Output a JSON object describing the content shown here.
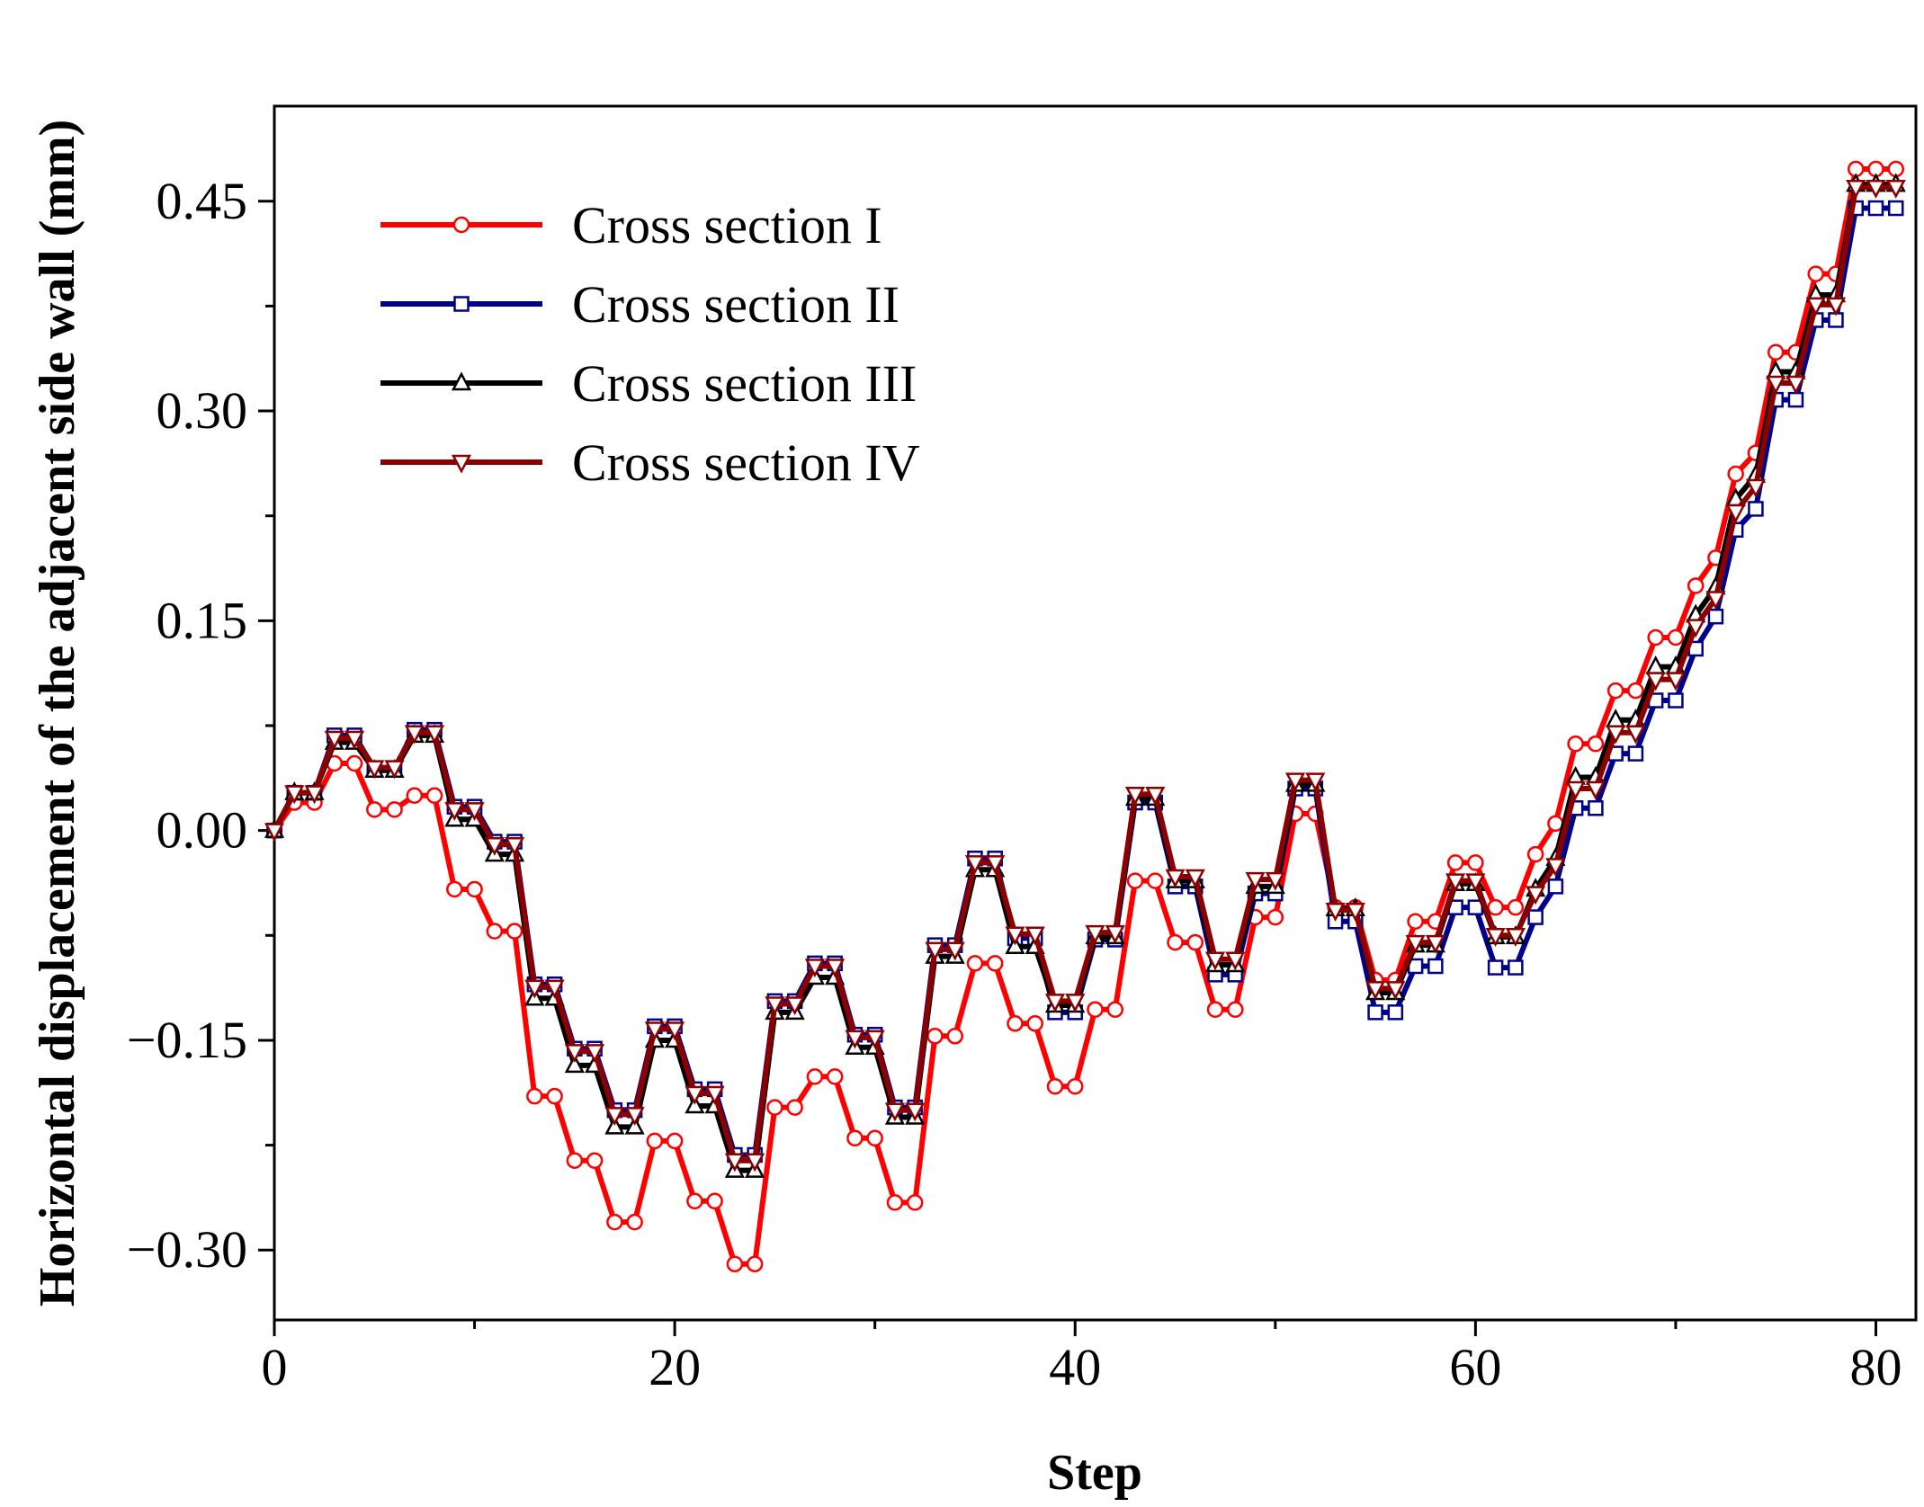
{
  "chart_data": {
    "type": "line",
    "xlabel": "Step",
    "ylabel": "Horizontal displacement of the adjacent side wall (mm)",
    "xlim": [
      0,
      82
    ],
    "ylim": [
      -0.35,
      0.518
    ],
    "x_ticks": [
      0,
      20,
      40,
      60,
      80
    ],
    "x_tick_labels": [
      "0",
      "20",
      "40",
      "60",
      "80"
    ],
    "y_ticks": [
      -0.3,
      -0.15,
      0.0,
      0.15,
      0.3,
      0.45
    ],
    "y_tick_labels": [
      "−0.30",
      "−0.15",
      "0.00",
      "0.15",
      "0.30",
      "0.45"
    ],
    "grid": false,
    "legend_position": "top-left",
    "series": [
      {
        "name": "Cross section I",
        "color": "#ff0000",
        "marker": "circle",
        "x": [
          0,
          1,
          2,
          3,
          4,
          5,
          6,
          7,
          8,
          9,
          10,
          11,
          12,
          13,
          14,
          15,
          16,
          17,
          18,
          19,
          20,
          21,
          22,
          23,
          24,
          25,
          26,
          27,
          28,
          29,
          30,
          31,
          32,
          33,
          34,
          35,
          36,
          37,
          38,
          39,
          40,
          41,
          42,
          43,
          44,
          45,
          46,
          47,
          48,
          49,
          50,
          51,
          52,
          53,
          54,
          55,
          56,
          57,
          58,
          59,
          60,
          61,
          62,
          63,
          64,
          65,
          66,
          67,
          68,
          69,
          70,
          71,
          72,
          73,
          74,
          75,
          76,
          77,
          78,
          79,
          80,
          81
        ],
        "y": [
          0.0,
          0.02,
          0.02,
          0.048,
          0.048,
          0.015,
          0.015,
          0.025,
          0.025,
          -0.042,
          -0.042,
          -0.072,
          -0.072,
          -0.19,
          -0.19,
          -0.236,
          -0.236,
          -0.28,
          -0.28,
          -0.222,
          -0.222,
          -0.265,
          -0.265,
          -0.31,
          -0.31,
          -0.198,
          -0.198,
          -0.176,
          -0.176,
          -0.22,
          -0.22,
          -0.266,
          -0.266,
          -0.147,
          -0.147,
          -0.095,
          -0.095,
          -0.138,
          -0.138,
          -0.183,
          -0.183,
          -0.128,
          -0.128,
          -0.036,
          -0.036,
          -0.08,
          -0.08,
          -0.128,
          -0.128,
          -0.062,
          -0.062,
          0.012,
          0.012,
          -0.055,
          -0.055,
          -0.107,
          -0.107,
          -0.065,
          -0.065,
          -0.023,
          -0.023,
          -0.055,
          -0.055,
          -0.017,
          0.005,
          0.062,
          0.062,
          0.1,
          0.1,
          0.138,
          0.138,
          0.175,
          0.195,
          0.255,
          0.27,
          0.342,
          0.342,
          0.398,
          0.398,
          0.473,
          0.473,
          0.473
        ]
      },
      {
        "name": "Cross section II",
        "color": "#00008b",
        "marker": "square",
        "x": [
          0,
          1,
          2,
          3,
          4,
          5,
          6,
          7,
          8,
          9,
          10,
          11,
          12,
          13,
          14,
          15,
          16,
          17,
          18,
          19,
          20,
          21,
          22,
          23,
          24,
          25,
          26,
          27,
          28,
          29,
          30,
          31,
          32,
          33,
          34,
          35,
          36,
          37,
          38,
          39,
          40,
          41,
          42,
          43,
          44,
          45,
          46,
          47,
          48,
          49,
          50,
          51,
          52,
          53,
          54,
          55,
          56,
          57,
          58,
          59,
          60,
          61,
          62,
          63,
          64,
          65,
          66,
          67,
          68,
          69,
          70,
          71,
          72,
          73,
          74,
          75,
          76,
          77,
          78,
          79,
          80,
          81
        ],
        "y": [
          0.0,
          0.027,
          0.027,
          0.068,
          0.068,
          0.044,
          0.044,
          0.072,
          0.072,
          0.017,
          0.017,
          -0.008,
          -0.008,
          -0.11,
          -0.11,
          -0.156,
          -0.156,
          -0.2,
          -0.2,
          -0.14,
          -0.14,
          -0.185,
          -0.185,
          -0.232,
          -0.232,
          -0.122,
          -0.122,
          -0.095,
          -0.095,
          -0.146,
          -0.146,
          -0.198,
          -0.198,
          -0.082,
          -0.082,
          -0.02,
          -0.02,
          -0.077,
          -0.077,
          -0.13,
          -0.13,
          -0.078,
          -0.078,
          0.02,
          0.02,
          -0.04,
          -0.04,
          -0.103,
          -0.103,
          -0.045,
          -0.045,
          0.03,
          0.03,
          -0.065,
          -0.065,
          -0.13,
          -0.13,
          -0.097,
          -0.097,
          -0.055,
          -0.055,
          -0.098,
          -0.098,
          -0.062,
          -0.04,
          0.016,
          0.016,
          0.055,
          0.055,
          0.093,
          0.093,
          0.13,
          0.153,
          0.215,
          0.23,
          0.308,
          0.308,
          0.365,
          0.365,
          0.445,
          0.445,
          0.445
        ]
      },
      {
        "name": "Cross section III",
        "color": "#000000",
        "marker": "triangle-up",
        "x": [
          0,
          1,
          2,
          3,
          4,
          5,
          6,
          7,
          8,
          9,
          10,
          11,
          12,
          13,
          14,
          15,
          16,
          17,
          18,
          19,
          20,
          21,
          22,
          23,
          24,
          25,
          26,
          27,
          28,
          29,
          30,
          31,
          32,
          33,
          34,
          35,
          36,
          37,
          38,
          39,
          40,
          41,
          42,
          43,
          44,
          45,
          46,
          47,
          48,
          49,
          50,
          51,
          52,
          53,
          54,
          55,
          56,
          57,
          58,
          59,
          60,
          61,
          62,
          63,
          64,
          65,
          66,
          67,
          68,
          69,
          70,
          71,
          72,
          73,
          74,
          75,
          76,
          77,
          78,
          79,
          80,
          81
        ],
        "y": [
          0.0,
          0.027,
          0.027,
          0.063,
          0.063,
          0.043,
          0.043,
          0.068,
          0.068,
          0.008,
          0.008,
          -0.017,
          -0.017,
          -0.12,
          -0.12,
          -0.168,
          -0.168,
          -0.212,
          -0.212,
          -0.15,
          -0.15,
          -0.197,
          -0.197,
          -0.243,
          -0.243,
          -0.13,
          -0.13,
          -0.105,
          -0.105,
          -0.155,
          -0.155,
          -0.205,
          -0.205,
          -0.09,
          -0.09,
          -0.028,
          -0.028,
          -0.083,
          -0.083,
          -0.125,
          -0.125,
          -0.076,
          -0.076,
          0.023,
          0.023,
          -0.036,
          -0.036,
          -0.096,
          -0.096,
          -0.04,
          -0.04,
          0.033,
          0.033,
          -0.056,
          -0.056,
          -0.116,
          -0.116,
          -0.082,
          -0.082,
          -0.038,
          -0.038,
          -0.076,
          -0.076,
          -0.042,
          -0.02,
          0.038,
          0.038,
          0.079,
          0.079,
          0.117,
          0.117,
          0.154,
          0.174,
          0.237,
          0.254,
          0.328,
          0.328,
          0.383,
          0.383,
          0.462,
          0.462,
          0.462
        ]
      },
      {
        "name": "Cross section IV",
        "color": "#8b0000",
        "marker": "triangle-down",
        "x": [
          0,
          1,
          2,
          3,
          4,
          5,
          6,
          7,
          8,
          9,
          10,
          11,
          12,
          13,
          14,
          15,
          16,
          17,
          18,
          19,
          20,
          21,
          22,
          23,
          24,
          25,
          26,
          27,
          28,
          29,
          30,
          31,
          32,
          33,
          34,
          35,
          36,
          37,
          38,
          39,
          40,
          41,
          42,
          43,
          44,
          45,
          46,
          47,
          48,
          49,
          50,
          51,
          52,
          53,
          54,
          55,
          56,
          57,
          58,
          59,
          60,
          61,
          62,
          63,
          64,
          65,
          66,
          67,
          68,
          69,
          70,
          71,
          72,
          73,
          74,
          75,
          76,
          77,
          78,
          79,
          80,
          81
        ],
        "y": [
          0.0,
          0.027,
          0.027,
          0.066,
          0.066,
          0.045,
          0.045,
          0.07,
          0.07,
          0.015,
          0.015,
          -0.01,
          -0.01,
          -0.112,
          -0.112,
          -0.158,
          -0.158,
          -0.203,
          -0.203,
          -0.142,
          -0.142,
          -0.188,
          -0.188,
          -0.236,
          -0.236,
          -0.124,
          -0.124,
          -0.097,
          -0.097,
          -0.148,
          -0.148,
          -0.2,
          -0.2,
          -0.085,
          -0.085,
          -0.023,
          -0.023,
          -0.074,
          -0.074,
          -0.122,
          -0.122,
          -0.073,
          -0.073,
          0.026,
          0.026,
          -0.033,
          -0.033,
          -0.092,
          -0.092,
          -0.035,
          -0.035,
          0.036,
          0.036,
          -0.057,
          -0.057,
          -0.113,
          -0.113,
          -0.08,
          -0.08,
          -0.036,
          -0.036,
          -0.075,
          -0.075,
          -0.045,
          -0.025,
          0.03,
          0.03,
          0.07,
          0.07,
          0.108,
          0.108,
          0.146,
          0.166,
          0.228,
          0.246,
          0.32,
          0.32,
          0.376,
          0.376,
          0.46,
          0.46,
          0.46
        ]
      }
    ]
  }
}
